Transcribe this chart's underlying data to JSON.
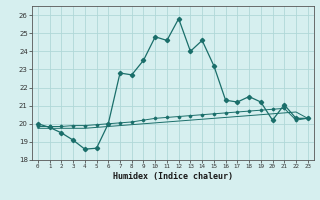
{
  "xlabel": "Humidex (Indice chaleur)",
  "bg_color": "#d6efef",
  "grid_color": "#b0d8d8",
  "line_color": "#1a6e6a",
  "xlim": [
    -0.5,
    23.5
  ],
  "ylim": [
    18,
    26.5
  ],
  "yticks": [
    18,
    19,
    20,
    21,
    22,
    23,
    24,
    25,
    26
  ],
  "xticks": [
    0,
    1,
    2,
    3,
    4,
    5,
    6,
    7,
    8,
    9,
    10,
    11,
    12,
    13,
    14,
    15,
    16,
    17,
    18,
    19,
    20,
    21,
    22,
    23
  ],
  "series1_x": [
    0,
    1,
    2,
    3,
    4,
    5,
    6,
    7,
    8,
    9,
    10,
    11,
    12,
    13,
    14,
    15,
    16,
    17,
    18,
    19,
    20,
    21,
    22,
    23
  ],
  "series1_y": [
    20.0,
    19.8,
    19.5,
    19.1,
    18.6,
    18.65,
    20.0,
    22.8,
    22.7,
    23.5,
    24.8,
    24.6,
    25.8,
    24.0,
    24.6,
    23.2,
    21.3,
    21.2,
    21.5,
    21.2,
    20.2,
    21.05,
    20.3,
    20.3
  ],
  "series2_x": [
    0,
    1,
    2,
    3,
    4,
    5,
    6,
    7,
    8,
    9,
    10,
    11,
    12,
    13,
    14,
    15,
    16,
    17,
    18,
    19,
    20,
    21,
    22,
    23
  ],
  "series2_y": [
    19.85,
    19.85,
    19.85,
    19.9,
    19.9,
    19.95,
    20.0,
    20.05,
    20.1,
    20.2,
    20.3,
    20.35,
    20.4,
    20.45,
    20.5,
    20.55,
    20.6,
    20.65,
    20.7,
    20.75,
    20.8,
    20.85,
    20.2,
    20.3
  ],
  "series3_x": [
    0,
    1,
    2,
    3,
    4,
    5,
    6,
    7,
    8,
    9,
    10,
    11,
    12,
    13,
    14,
    15,
    16,
    17,
    18,
    19,
    20,
    21,
    22,
    23
  ],
  "series3_y": [
    19.75,
    19.75,
    19.75,
    19.75,
    19.75,
    19.8,
    19.85,
    19.9,
    19.95,
    20.0,
    20.05,
    20.1,
    20.15,
    20.2,
    20.25,
    20.3,
    20.35,
    20.4,
    20.45,
    20.5,
    20.55,
    20.6,
    20.65,
    20.3
  ]
}
